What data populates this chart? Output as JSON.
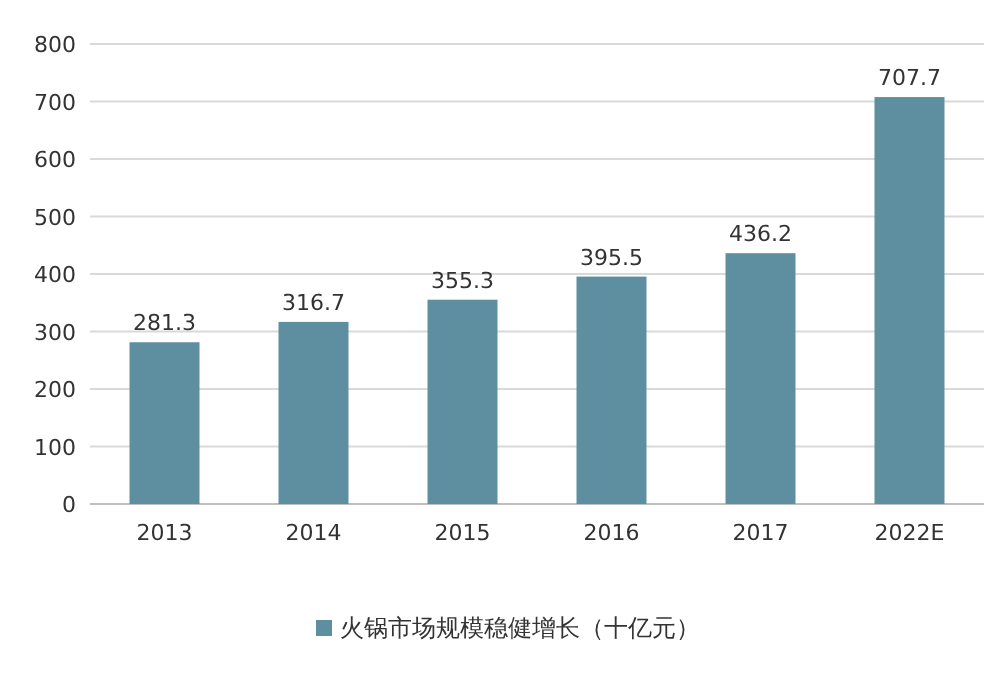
{
  "chart_data": {
    "type": "bar",
    "categories": [
      "2013",
      "2014",
      "2015",
      "2016",
      "2017",
      "2022E"
    ],
    "series": [
      {
        "name": "火锅市场规模稳健增长（十亿元）",
        "color": "#5e8fa1",
        "values": [
          281.3,
          316.7,
          355.3,
          395.5,
          436.2,
          707.7
        ]
      }
    ],
    "ylim": [
      0,
      800
    ],
    "yticks": [
      0,
      100,
      200,
      300,
      400,
      500,
      600,
      700,
      800
    ],
    "grid": "y",
    "data_labels": true,
    "legend": "bottom"
  }
}
